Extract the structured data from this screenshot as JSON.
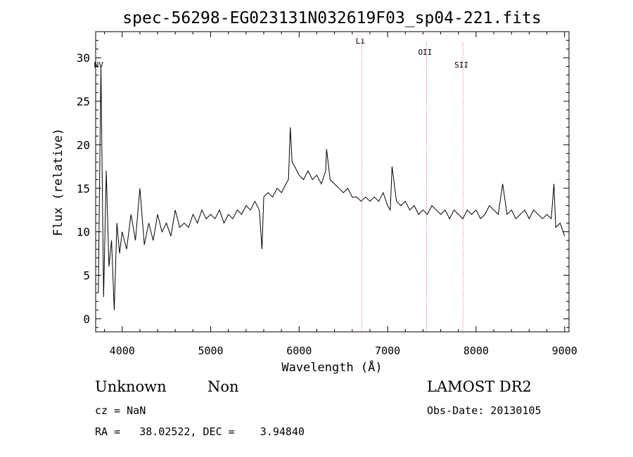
{
  "chart_data": {
    "type": "line",
    "title": "spec-56298-EG023131N032619F03_sp04-221.fits",
    "xlabel": "Wavelength (Å)",
    "ylabel": "Flux (relative)",
    "xlim": [
      3700,
      9050
    ],
    "ylim": [
      -1.5,
      33
    ],
    "xticks": [
      4000,
      5000,
      6000,
      7000,
      8000,
      9000
    ],
    "yticks": [
      0,
      5,
      10,
      15,
      20,
      25,
      30
    ],
    "grid": false,
    "series": [
      {
        "x": [
          3730,
          3760,
          3790,
          3820,
          3850,
          3880,
          3910,
          3940,
          3970,
          4000,
          4050,
          4100,
          4150,
          4200,
          4250,
          4300,
          4350,
          4400,
          4450,
          4500,
          4550,
          4600,
          4650,
          4700,
          4750,
          4800,
          4850,
          4900,
          4950,
          5000,
          5050,
          5100,
          5150,
          5200,
          5250,
          5300,
          5350,
          5400,
          5450,
          5500,
          5550,
          5580,
          5600,
          5650,
          5700,
          5750,
          5800,
          5850,
          5880,
          5900,
          5920,
          5950,
          6000,
          6050,
          6100,
          6150,
          6200,
          6250,
          6300,
          6310,
          6350,
          6400,
          6450,
          6500,
          6550,
          6600,
          6650,
          6700,
          6750,
          6800,
          6850,
          6900,
          6950,
          7000,
          7030,
          7050,
          7100,
          7150,
          7200,
          7250,
          7300,
          7350,
          7400,
          7450,
          7500,
          7550,
          7600,
          7650,
          7700,
          7750,
          7800,
          7850,
          7900,
          7950,
          8000,
          8050,
          8100,
          8150,
          8200,
          8250,
          8300,
          8350,
          8400,
          8450,
          8500,
          8550,
          8600,
          8650,
          8700,
          8750,
          8800,
          8850,
          8880,
          8900,
          8950,
          9000
        ],
        "y": [
          3.0,
          29.0,
          2.5,
          17.0,
          6.0,
          9.0,
          1.0,
          11.0,
          7.5,
          10.0,
          8.0,
          12.0,
          9.0,
          15.0,
          8.5,
          11.0,
          9.0,
          12.0,
          10.0,
          11.0,
          9.5,
          12.5,
          10.5,
          11.0,
          10.5,
          12.0,
          11.0,
          12.5,
          11.5,
          12.0,
          11.5,
          12.5,
          11.0,
          12.0,
          11.5,
          12.5,
          12.0,
          13.0,
          12.5,
          13.5,
          12.5,
          8.0,
          14.0,
          14.5,
          14.0,
          15.0,
          14.5,
          15.5,
          16.0,
          22.0,
          18.0,
          17.5,
          16.5,
          16.0,
          17.0,
          16.0,
          16.5,
          15.5,
          17.0,
          19.5,
          16.0,
          15.5,
          15.0,
          14.5,
          15.0,
          14.0,
          14.0,
          13.5,
          14.0,
          13.5,
          14.0,
          13.5,
          14.5,
          13.0,
          12.5,
          17.5,
          13.5,
          13.0,
          13.5,
          12.5,
          13.0,
          12.0,
          12.5,
          12.0,
          13.0,
          12.5,
          12.0,
          12.5,
          11.5,
          12.5,
          12.0,
          11.5,
          12.5,
          12.0,
          12.5,
          11.5,
          12.0,
          13.0,
          12.5,
          12.0,
          15.5,
          12.0,
          12.5,
          11.5,
          12.0,
          12.5,
          11.5,
          12.5,
          12.0,
          11.5,
          12.0,
          11.5,
          15.5,
          10.5,
          11.0,
          9.5
        ]
      }
    ],
    "annotations": [
      {
        "label": "NV",
        "x": 3750
      },
      {
        "label": "Li",
        "x": 6708
      },
      {
        "label": "OII",
        "x": 7440
      },
      {
        "label": "SII",
        "x": 7850
      }
    ]
  },
  "info": {
    "class_left": "Unknown",
    "class_right": "Non",
    "survey": "LAMOST DR2",
    "cz": "cz = NaN",
    "obs_date": "Obs-Date: 20130105",
    "coords": "RA =   38.02522, DEC =    3.94840"
  },
  "colors": {
    "line": "#000000",
    "marker_line": "#e0406a",
    "axis": "#000000"
  }
}
